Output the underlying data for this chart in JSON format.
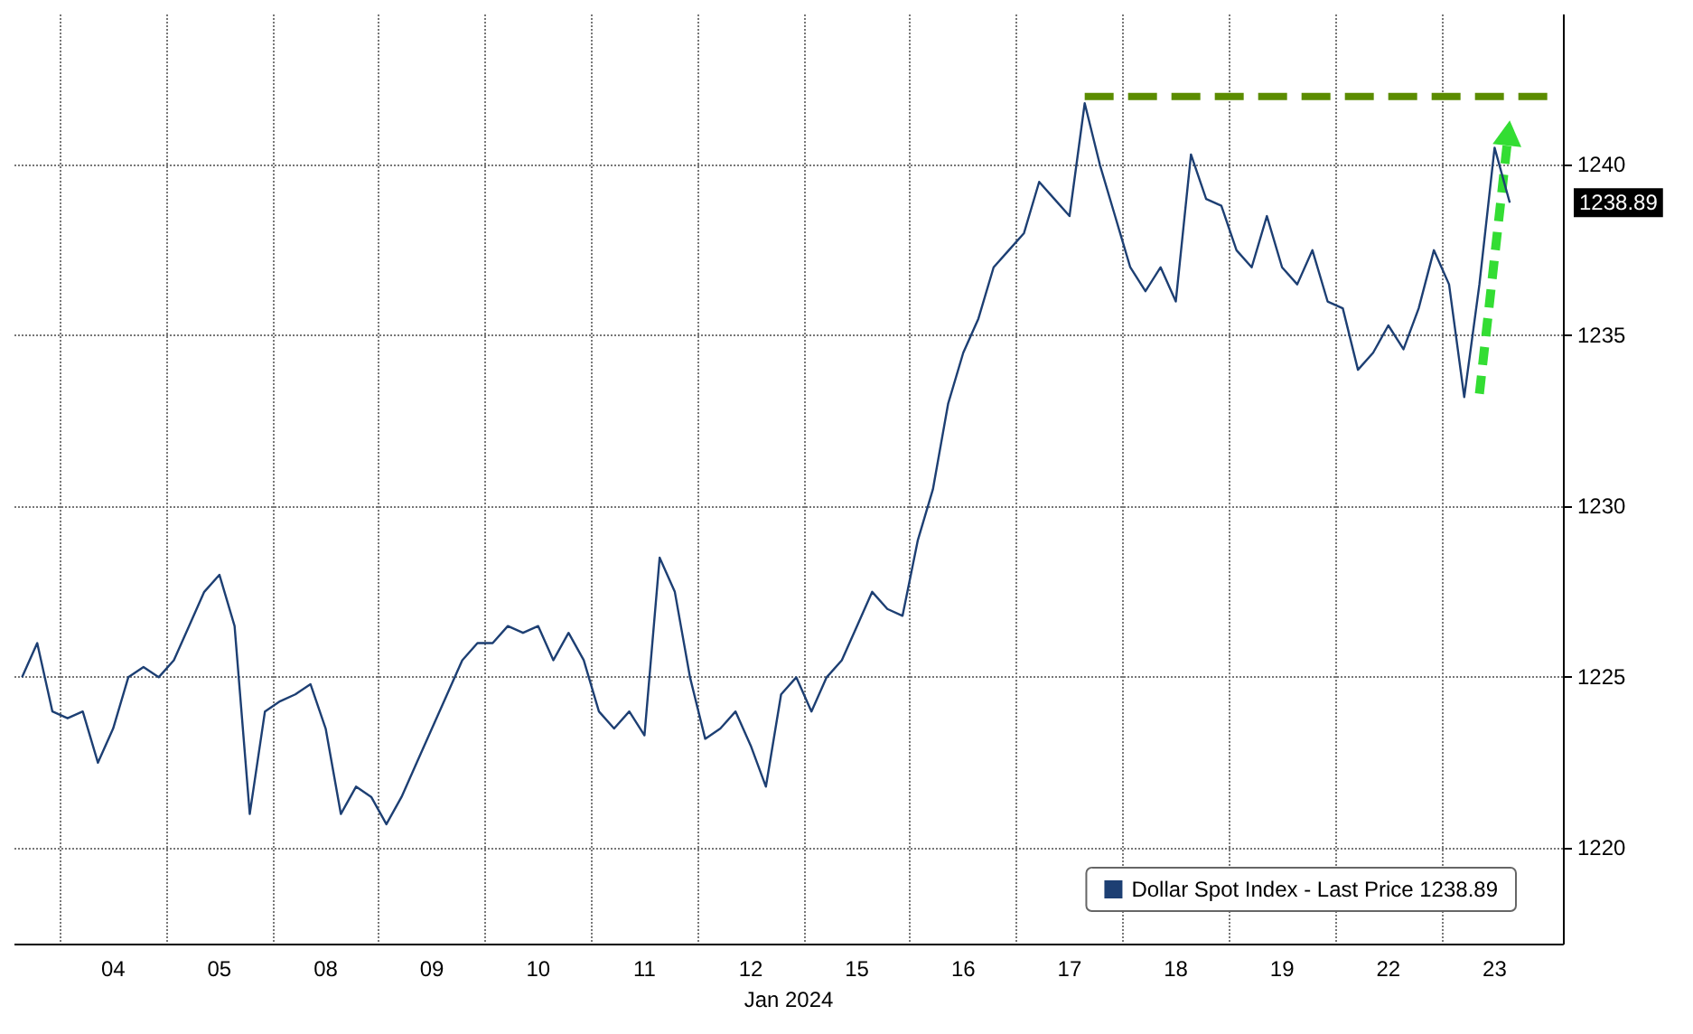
{
  "chart_data": {
    "type": "line",
    "xlabel": "Jan 2024",
    "categories": [
      null,
      null,
      null,
      null,
      null,
      null,
      "04",
      null,
      null,
      null,
      null,
      null,
      null,
      "05",
      null,
      null,
      null,
      null,
      null,
      null,
      "08",
      null,
      null,
      null,
      null,
      null,
      null,
      "09",
      null,
      null,
      null,
      null,
      null,
      null,
      "10",
      null,
      null,
      null,
      null,
      null,
      null,
      "11",
      null,
      null,
      null,
      null,
      null,
      null,
      "12",
      null,
      null,
      null,
      null,
      null,
      null,
      "15",
      null,
      null,
      null,
      null,
      null,
      null,
      "16",
      null,
      null,
      null,
      null,
      null,
      null,
      "17",
      null,
      null,
      null,
      null,
      null,
      null,
      "18",
      null,
      null,
      null,
      null,
      null,
      null,
      "19",
      null,
      null,
      null,
      null,
      null,
      null,
      "22",
      null,
      null,
      null,
      null,
      null,
      null,
      "23",
      null,
      null,
      null,
      null
    ],
    "series": [
      {
        "name": "Dollar Spot Index - Last Price 1238.89",
        "color": "#1d3f73",
        "values": [
          1225,
          1226,
          1224,
          1223.8,
          1224,
          1222.5,
          1223.5,
          1225,
          1225.3,
          1225,
          1225.5,
          1226.5,
          1227.5,
          1228,
          1226.5,
          1221,
          1224,
          1224.3,
          1224.5,
          1224.8,
          1223.5,
          1221,
          1221.8,
          1221.5,
          1220.7,
          1221.5,
          1222.5,
          1223.5,
          1224.5,
          1225.5,
          1226,
          1226,
          1226.5,
          1226.3,
          1226.5,
          1225.5,
          1226.3,
          1225.5,
          1224,
          1223.5,
          1224,
          1223.3,
          1228.5,
          1227.5,
          1225,
          1223.2,
          1223.5,
          1224,
          1223,
          1221.8,
          1224.5,
          1225,
          1224,
          1225,
          1225.5,
          1226.5,
          1227.5,
          1227,
          1226.8,
          1229,
          1230.5,
          1233,
          1234.5,
          1235.5,
          1237,
          1237.5,
          1238,
          1239.5,
          1239,
          1238.5,
          1241.8,
          1240,
          1238.5,
          1237,
          1236.3,
          1237,
          1236,
          1240.3,
          1239,
          1238.8,
          1237.5,
          1237,
          1238.5,
          1237,
          1236.5,
          1237.5,
          1236,
          1235.8,
          1234,
          1234.5,
          1235.3,
          1234.6,
          1235.8,
          1237.5,
          1236.5,
          1233.2,
          1236.5,
          1240.5,
          1238.89,
          null,
          null,
          null
        ]
      },
      {
        "type": "line",
        "color": "#5b8c00",
        "line_style": "dashed",
        "values": [
          null,
          null,
          null,
          null,
          null,
          null,
          null,
          null,
          null,
          null,
          null,
          null,
          null,
          null,
          null,
          null,
          null,
          null,
          null,
          null,
          null,
          null,
          null,
          null,
          null,
          null,
          null,
          null,
          null,
          null,
          null,
          null,
          null,
          null,
          null,
          null,
          null,
          null,
          null,
          null,
          null,
          null,
          null,
          null,
          null,
          null,
          null,
          null,
          null,
          null,
          null,
          null,
          null,
          null,
          null,
          null,
          null,
          null,
          null,
          null,
          null,
          null,
          null,
          null,
          null,
          null,
          null,
          null,
          null,
          null,
          1242,
          1242,
          1242,
          1242,
          1242,
          1242,
          1242,
          1242,
          1242,
          1242,
          1242,
          1242,
          1242,
          1242,
          1242,
          1242,
          1242,
          1242,
          1242,
          1242,
          1242,
          1242,
          1242,
          1242,
          1242,
          1242,
          1242,
          1242,
          1242,
          1242,
          1242,
          1242
        ]
      }
    ],
    "ylim": [
      1217.2,
      1244.4
    ],
    "yticks": [
      1220,
      1225,
      1230,
      1235,
      1240
    ],
    "grid": true,
    "legend": "bottom right",
    "marker": "none",
    "annotations": [
      "1238.89"
    ]
  }
}
